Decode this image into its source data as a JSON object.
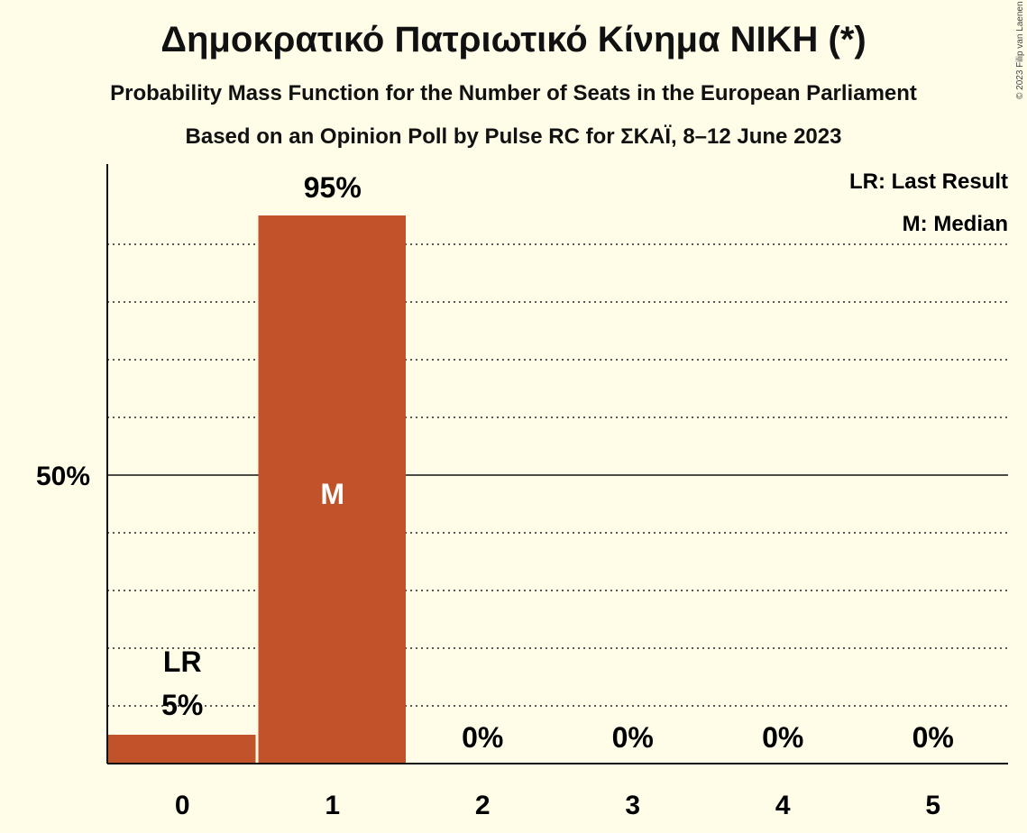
{
  "title": "Δημοκρατικό Πατριωτικό Κίνημα ΝΙΚΗ (*)",
  "subtitle_1": "Probability Mass Function for the Number of Seats in the European Parliament",
  "subtitle_2": "Based on an Opinion Poll by Pulse RC for ΣΚΑΪ, 8–12 June 2023",
  "copyright": "© 2023 Filip van Laenen",
  "legend": {
    "last_result": "LR: Last Result",
    "median": "M: Median"
  },
  "colors": {
    "background": "#fffde8",
    "bar": "#c0532a",
    "text": "#111111"
  },
  "chart_data": {
    "type": "bar",
    "categories": [
      "0",
      "1",
      "2",
      "3",
      "4",
      "5"
    ],
    "values": [
      5,
      95,
      0,
      0,
      0,
      0
    ],
    "value_labels": [
      "5%",
      "95%",
      "0%",
      "0%",
      "0%",
      "0%"
    ],
    "ylim": [
      0,
      100
    ],
    "y_tick_label": "50%",
    "y_tick_value": 50,
    "gridlines_dotted_every": 10,
    "last_result_index": 0,
    "last_result_marker": "LR",
    "median_index": 1,
    "median_marker": "M",
    "legend_placement": "top-right"
  }
}
